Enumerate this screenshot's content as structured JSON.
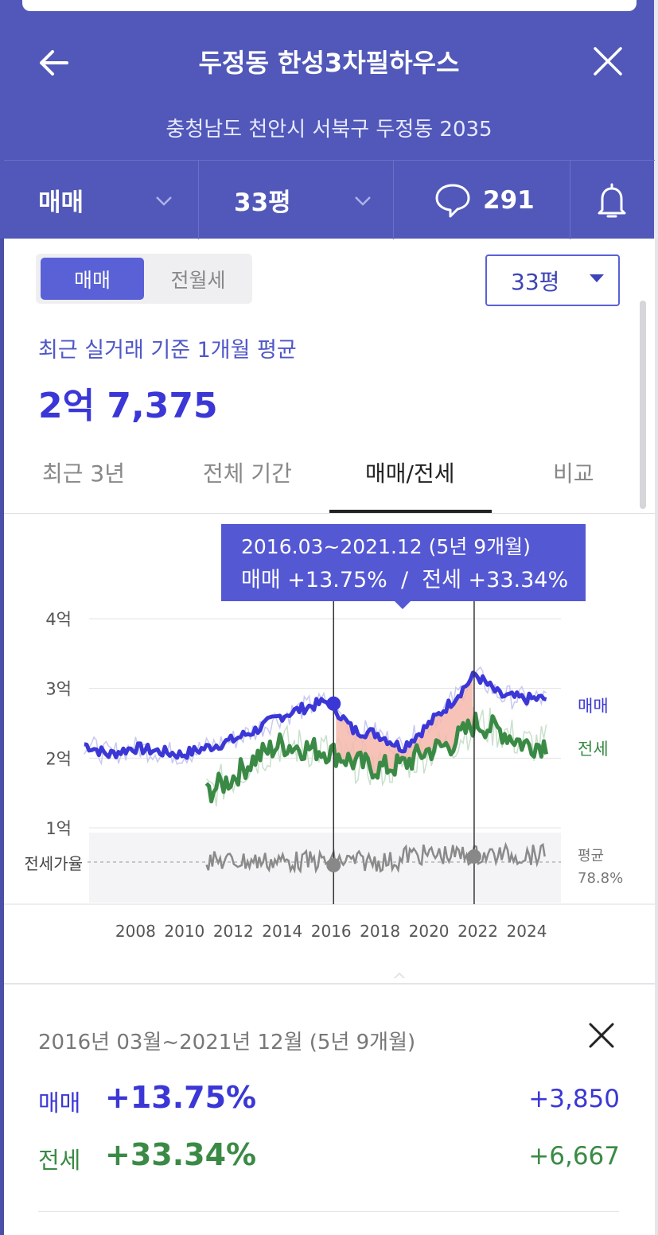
{
  "header": {
    "title": "두정동 한성3차필하우스",
    "address": "충청남도 천안시 서북구 두정동 2035"
  },
  "filters": {
    "deal_type": "매매",
    "size": "33평",
    "comment_count": "291"
  },
  "trade_toggle": {
    "options": [
      "매매",
      "전월세"
    ],
    "selected": "매매"
  },
  "size_select": {
    "value": "33평"
  },
  "summary": {
    "label": "최근 실거래 기준 1개월 평균",
    "price": "2억 7,375"
  },
  "tabs": [
    {
      "label": "최근 3년",
      "active": false
    },
    {
      "label": "전체 기간",
      "active": false
    },
    {
      "label": "매매/전세",
      "active": true
    },
    {
      "label": "비교",
      "active": false
    }
  ],
  "tooltip": {
    "range": "2016.03~2021.12 (5년 9개월)",
    "change": "매매 +13.75%  /  전세 +33.34%"
  },
  "chart_data": {
    "type": "line",
    "x_ticks": [
      "2008",
      "2010",
      "2012",
      "2014",
      "2016",
      "2018",
      "2020",
      "2022",
      "2024"
    ],
    "y_ticks": [
      "4억",
      "3억",
      "2억",
      "1억"
    ],
    "ylim": [
      1,
      4
    ],
    "y_unit": "억",
    "selection": {
      "start": "2016.03",
      "end": "2021.12"
    },
    "series": [
      {
        "name": "매매",
        "color": "#3b37d6",
        "values_by_year": {
          "2006": 2.2,
          "2007": 2.05,
          "2008": 2.15,
          "2009": 2.1,
          "2010": 2.05,
          "2011": 2.15,
          "2012": 2.25,
          "2013": 2.4,
          "2014": 2.6,
          "2015": 2.72,
          "2016": 2.82,
          "2017": 2.4,
          "2018": 2.35,
          "2019": 2.15,
          "2020": 2.45,
          "2021": 2.8,
          "2022": 3.2,
          "2023": 2.9,
          "2024": 2.85
        }
      },
      {
        "name": "전세",
        "color": "#3a8a45",
        "values_by_year": {
          "2011": 1.5,
          "2012": 1.7,
          "2013": 2.0,
          "2014": 2.2,
          "2015": 2.15,
          "2016": 2.1,
          "2017": 1.95,
          "2018": 1.85,
          "2019": 1.9,
          "2020": 2.1,
          "2021": 2.2,
          "2022": 2.5,
          "2023": 2.4,
          "2024": 2.2
        }
      }
    ],
    "ratio_label": "전세가율",
    "ratio_avg_label": "평균",
    "ratio_avg_value": "78.8%"
  },
  "detail": {
    "range": "2016년 03월~2021년 12월 (5년 9개월)",
    "rows": [
      {
        "label": "매매",
        "pct": "+13.75%",
        "amount": "+3,850",
        "color": "#3b37d6"
      },
      {
        "label": "전세",
        "pct": "+33.34%",
        "amount": "+6,667",
        "color": "#3a8a45"
      }
    ]
  },
  "colors": {
    "header_bg": "#5158b9",
    "accent": "#5a61d6",
    "sale": "#3b37d6",
    "jeonse": "#3a8a45",
    "fill_between": "#f6b9ad"
  }
}
